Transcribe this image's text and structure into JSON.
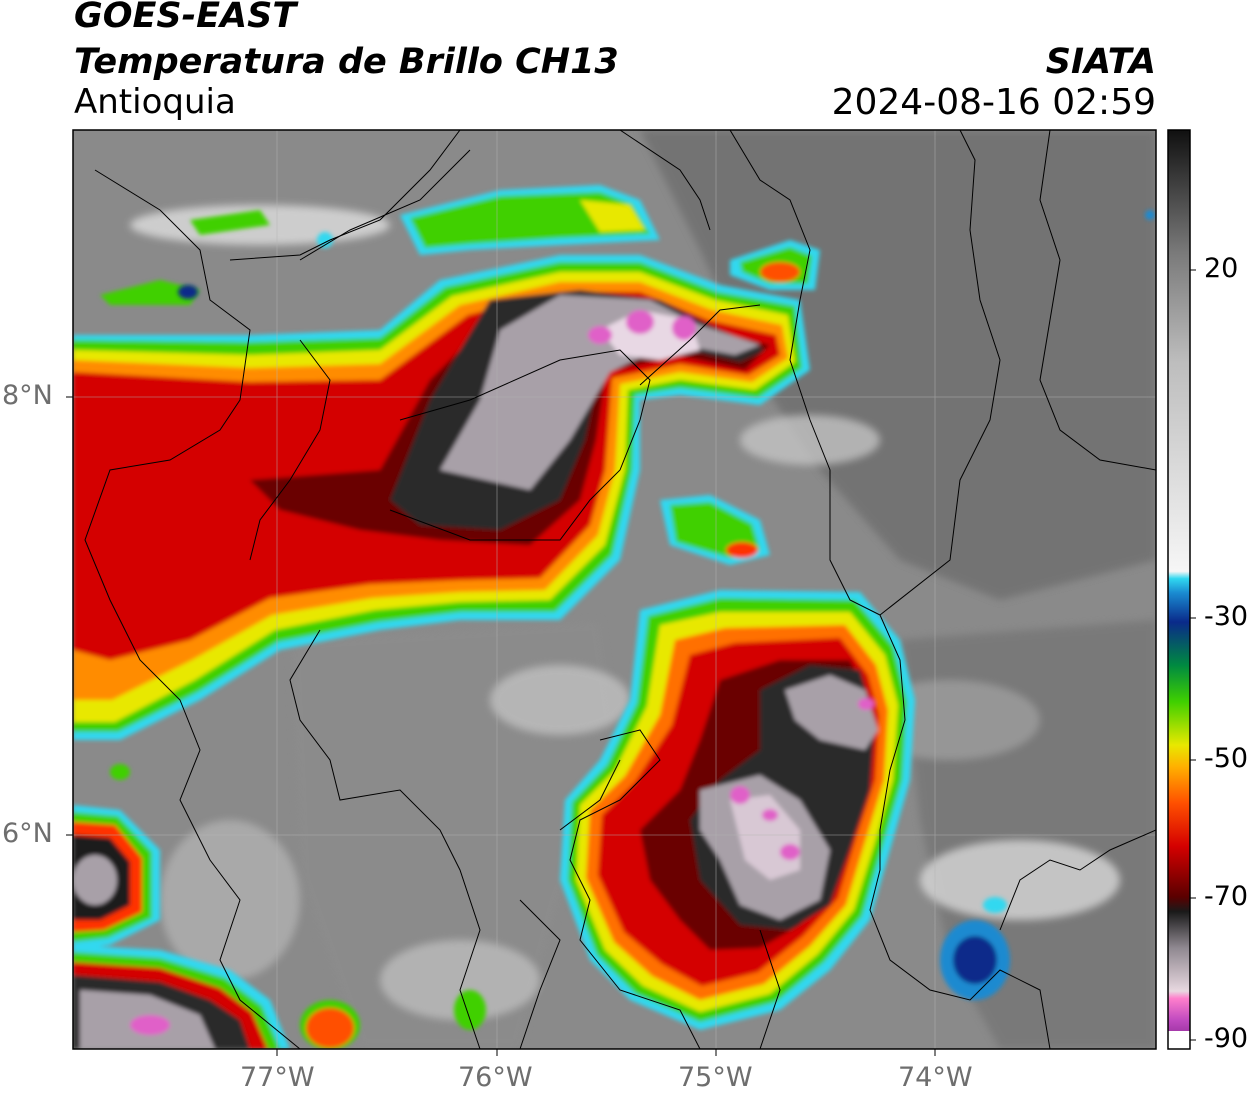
{
  "header": {
    "satellite": "GOES-EAST",
    "product": "Temperatura de Brillo CH13",
    "region": "Antioquia",
    "organization": "SIATA",
    "datetime": "2024-08-16 02:59"
  },
  "axes": {
    "x_ticks": [
      "77°W",
      "76°W",
      "75°W",
      "74°W"
    ],
    "y_ticks": [
      "8°N",
      "6°N"
    ]
  },
  "colorbar": {
    "ticks": [
      "20",
      "-30",
      "-50",
      "-70",
      "-90"
    ],
    "range": [
      -90,
      37
    ],
    "stops": [
      {
        "t": -90,
        "color": "#7a1e86"
      },
      {
        "t": -86,
        "color": "#c04ac0"
      },
      {
        "t": -83,
        "color": "#ff7fcc"
      },
      {
        "t": -82,
        "color": "#e8d8e0"
      },
      {
        "t": -76,
        "color": "#8f8890"
      },
      {
        "t": -71,
        "color": "#1a1a1a"
      },
      {
        "t": -69,
        "color": "#5a0000"
      },
      {
        "t": -62,
        "color": "#d40000"
      },
      {
        "t": -56,
        "color": "#ff5000"
      },
      {
        "t": -51,
        "color": "#ffb000"
      },
      {
        "t": -48,
        "color": "#e8e800"
      },
      {
        "t": -42,
        "color": "#3fd000"
      },
      {
        "t": -37,
        "color": "#008a40"
      },
      {
        "t": -31,
        "color": "#0a2a8a"
      },
      {
        "t": -27,
        "color": "#1a8ad0"
      },
      {
        "t": -25,
        "color": "#30d8f0"
      },
      {
        "t": -24,
        "color": "#f6f6f6"
      },
      {
        "t": 5,
        "color": "#bdbdbd"
      },
      {
        "t": 20,
        "color": "#7a7a7a"
      },
      {
        "t": 30,
        "color": "#3c3c3c"
      },
      {
        "t": 37,
        "color": "#101010"
      }
    ]
  }
}
